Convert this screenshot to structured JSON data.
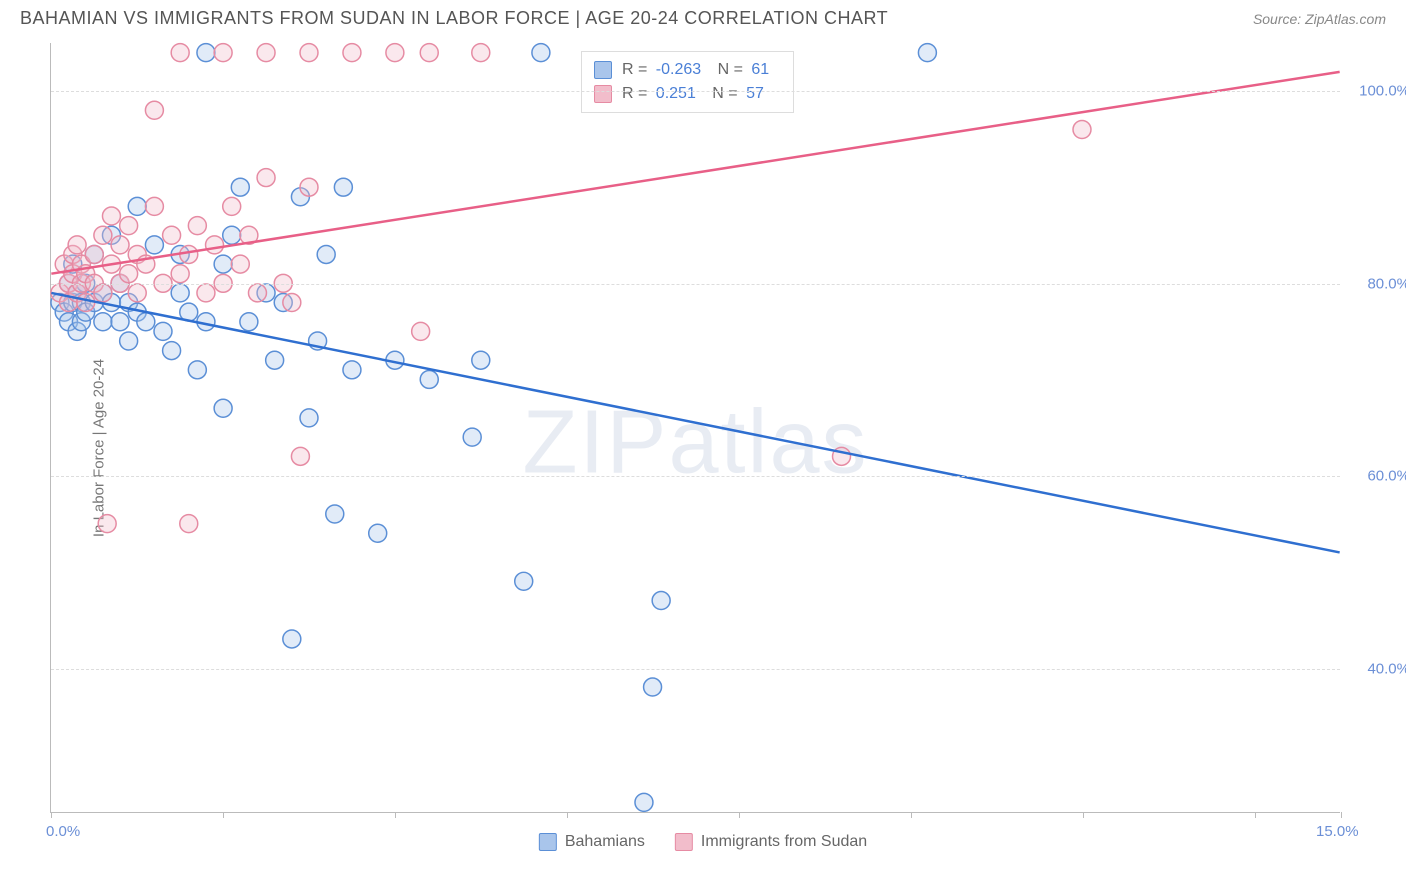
{
  "header": {
    "title": "BAHAMIAN VS IMMIGRANTS FROM SUDAN IN LABOR FORCE | AGE 20-24 CORRELATION CHART",
    "source": "Source: ZipAtlas.com"
  },
  "chart": {
    "type": "scatter",
    "y_axis_label": "In Labor Force | Age 20-24",
    "watermark": "ZIPatlas",
    "xlim": [
      0,
      15
    ],
    "ylim": [
      25,
      105
    ],
    "x_ticks": [
      0,
      2,
      4,
      6,
      8,
      10,
      12,
      14,
      15
    ],
    "x_tick_labels": {
      "0": "0.0%",
      "15": "15.0%"
    },
    "y_gridlines": [
      40,
      60,
      80,
      100
    ],
    "y_tick_labels": {
      "40": "40.0%",
      "60": "60.0%",
      "80": "80.0%",
      "100": "100.0%"
    },
    "background_color": "#ffffff",
    "grid_color": "#dddddd",
    "axis_color": "#bbbbbb",
    "tick_label_color": "#6b8fd6",
    "marker_radius": 9,
    "marker_stroke_width": 1.5,
    "marker_fill_opacity": 0.35,
    "line_width": 2.5,
    "series": [
      {
        "name": "Bahamians",
        "color_stroke": "#5b8fd6",
        "color_fill": "#a9c5eb",
        "line_color": "#2f6fd0",
        "R": "-0.263",
        "N": "61",
        "trendline": {
          "x1": 0,
          "y1": 79,
          "x2": 15,
          "y2": 52
        },
        "points": [
          [
            0.1,
            78
          ],
          [
            0.15,
            77
          ],
          [
            0.2,
            80
          ],
          [
            0.2,
            76
          ],
          [
            0.25,
            78
          ],
          [
            0.25,
            82
          ],
          [
            0.3,
            79
          ],
          [
            0.3,
            75
          ],
          [
            0.35,
            78
          ],
          [
            0.35,
            76
          ],
          [
            0.4,
            80
          ],
          [
            0.4,
            77
          ],
          [
            0.5,
            78
          ],
          [
            0.5,
            83
          ],
          [
            0.6,
            76
          ],
          [
            0.6,
            79
          ],
          [
            0.7,
            78
          ],
          [
            0.7,
            85
          ],
          [
            0.8,
            76
          ],
          [
            0.8,
            80
          ],
          [
            0.9,
            78
          ],
          [
            0.9,
            74
          ],
          [
            1.0,
            77
          ],
          [
            1.0,
            88
          ],
          [
            1.1,
            76
          ],
          [
            1.2,
            84
          ],
          [
            1.3,
            75
          ],
          [
            1.4,
            73
          ],
          [
            1.5,
            83
          ],
          [
            1.5,
            79
          ],
          [
            1.6,
            77
          ],
          [
            1.7,
            71
          ],
          [
            1.8,
            76
          ],
          [
            1.8,
            104
          ],
          [
            2.0,
            82
          ],
          [
            2.0,
            67
          ],
          [
            2.1,
            85
          ],
          [
            2.2,
            90
          ],
          [
            2.3,
            76
          ],
          [
            2.5,
            79
          ],
          [
            2.6,
            72
          ],
          [
            2.7,
            78
          ],
          [
            2.8,
            43
          ],
          [
            2.9,
            89
          ],
          [
            3.0,
            66
          ],
          [
            3.1,
            74
          ],
          [
            3.2,
            83
          ],
          [
            3.3,
            56
          ],
          [
            3.4,
            90
          ],
          [
            3.5,
            71
          ],
          [
            3.8,
            54
          ],
          [
            4.0,
            72
          ],
          [
            4.4,
            70
          ],
          [
            4.9,
            64
          ],
          [
            5.0,
            72
          ],
          [
            5.5,
            49
          ],
          [
            5.7,
            104
          ],
          [
            6.9,
            26
          ],
          [
            7.0,
            38
          ],
          [
            7.1,
            47
          ],
          [
            10.2,
            104
          ]
        ]
      },
      {
        "name": "Immigrants from Sudan",
        "color_stroke": "#e68ba3",
        "color_fill": "#f2bdcb",
        "line_color": "#e85f87",
        "R": "0.251",
        "N": "57",
        "trendline": {
          "x1": 0,
          "y1": 81,
          "x2": 15,
          "y2": 102
        },
        "points": [
          [
            0.1,
            79
          ],
          [
            0.15,
            82
          ],
          [
            0.2,
            80
          ],
          [
            0.2,
            78
          ],
          [
            0.25,
            81
          ],
          [
            0.25,
            83
          ],
          [
            0.3,
            79
          ],
          [
            0.3,
            84
          ],
          [
            0.35,
            80
          ],
          [
            0.35,
            82
          ],
          [
            0.4,
            78
          ],
          [
            0.4,
            81
          ],
          [
            0.5,
            80
          ],
          [
            0.5,
            83
          ],
          [
            0.6,
            79
          ],
          [
            0.6,
            85
          ],
          [
            0.65,
            55
          ],
          [
            0.7,
            82
          ],
          [
            0.7,
            87
          ],
          [
            0.8,
            80
          ],
          [
            0.8,
            84
          ],
          [
            0.9,
            81
          ],
          [
            0.9,
            86
          ],
          [
            1.0,
            79
          ],
          [
            1.0,
            83
          ],
          [
            1.1,
            82
          ],
          [
            1.2,
            88
          ],
          [
            1.2,
            98
          ],
          [
            1.3,
            80
          ],
          [
            1.4,
            85
          ],
          [
            1.5,
            81
          ],
          [
            1.5,
            104
          ],
          [
            1.6,
            83
          ],
          [
            1.6,
            55
          ],
          [
            1.7,
            86
          ],
          [
            1.8,
            79
          ],
          [
            1.9,
            84
          ],
          [
            2.0,
            80
          ],
          [
            2.0,
            104
          ],
          [
            2.1,
            88
          ],
          [
            2.2,
            82
          ],
          [
            2.3,
            85
          ],
          [
            2.4,
            79
          ],
          [
            2.5,
            91
          ],
          [
            2.5,
            104
          ],
          [
            2.7,
            80
          ],
          [
            2.8,
            78
          ],
          [
            2.9,
            62
          ],
          [
            3.0,
            90
          ],
          [
            3.0,
            104
          ],
          [
            3.5,
            104
          ],
          [
            4.0,
            104
          ],
          [
            4.3,
            75
          ],
          [
            4.4,
            104
          ],
          [
            5.0,
            104
          ],
          [
            9.2,
            62
          ],
          [
            12.0,
            96
          ]
        ]
      }
    ],
    "legend_top": {
      "r_label": "R =",
      "n_label": "N ="
    },
    "legend_bottom": [
      {
        "label": "Bahamians",
        "series": 0
      },
      {
        "label": "Immigrants from Sudan",
        "series": 1
      }
    ]
  }
}
